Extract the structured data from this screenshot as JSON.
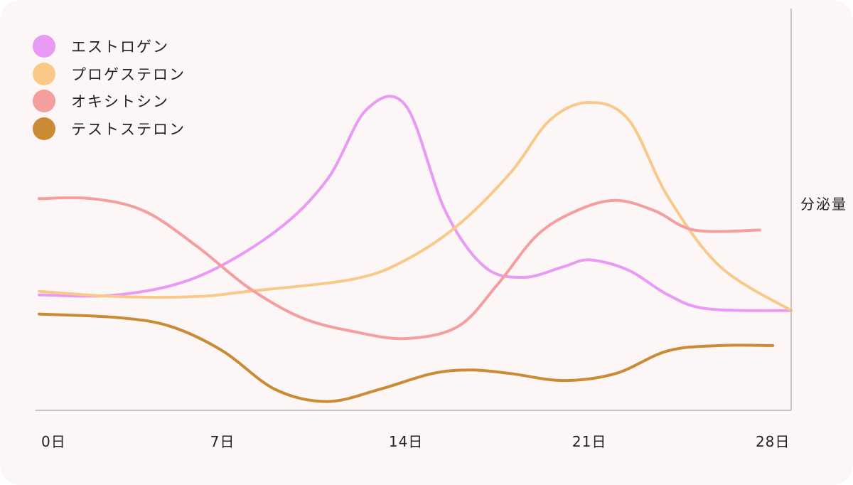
{
  "chart_data": {
    "type": "line",
    "categories": [
      "0日",
      "7日",
      "14日",
      "21日",
      "28日"
    ],
    "x_ticks": [
      0,
      7,
      14,
      21,
      28
    ],
    "xlim": [
      0,
      28.7
    ],
    "ylabel": "分泌量",
    "ylim": [
      0,
      100
    ],
    "grid": false,
    "legend_position": "top-left",
    "series": [
      {
        "name": "エストロゲン",
        "color": "#e89af5",
        "x": [
          0,
          3,
          6,
          9,
          11,
          12.5,
          14,
          15.5,
          17,
          18.5,
          20,
          21,
          22.5,
          24,
          25.5,
          28.7
        ],
        "values": [
          32,
          32,
          37,
          50,
          65,
          85,
          86,
          56,
          40,
          37,
          40,
          42,
          39,
          32,
          28,
          27.5
        ]
      },
      {
        "name": "プロゲステロン",
        "color": "#f9c98a",
        "x": [
          0,
          3,
          6,
          8,
          12,
          14,
          16,
          18,
          19.5,
          21,
          22.5,
          24,
          26,
          28.7
        ],
        "values": [
          33,
          31.5,
          31.5,
          33,
          36.5,
          42,
          52,
          67,
          82,
          87,
          82,
          60,
          40,
          27.5
        ]
      },
      {
        "name": "オキシトシン",
        "color": "#f59e9e",
        "x": [
          0,
          2,
          4,
          6,
          8,
          10,
          12,
          14,
          16,
          17.5,
          19,
          20.5,
          22,
          23.5,
          25,
          27.5
        ],
        "values": [
          59.5,
          59.5,
          56,
          46,
          34,
          25.5,
          21.5,
          19.5,
          23,
          35,
          49,
          56,
          59,
          56,
          50.5,
          50.5
        ]
      },
      {
        "name": "テストステロン",
        "color": "#c98b34",
        "x": [
          0,
          3,
          5,
          7,
          9,
          11,
          13,
          15,
          16.5,
          18,
          20,
          22,
          24,
          26,
          28
        ],
        "values": [
          26.5,
          25.5,
          23,
          16,
          5,
          1.5,
          5,
          9.5,
          10.5,
          9.5,
          7.5,
          9.5,
          16,
          17.5,
          17.5
        ]
      }
    ]
  }
}
